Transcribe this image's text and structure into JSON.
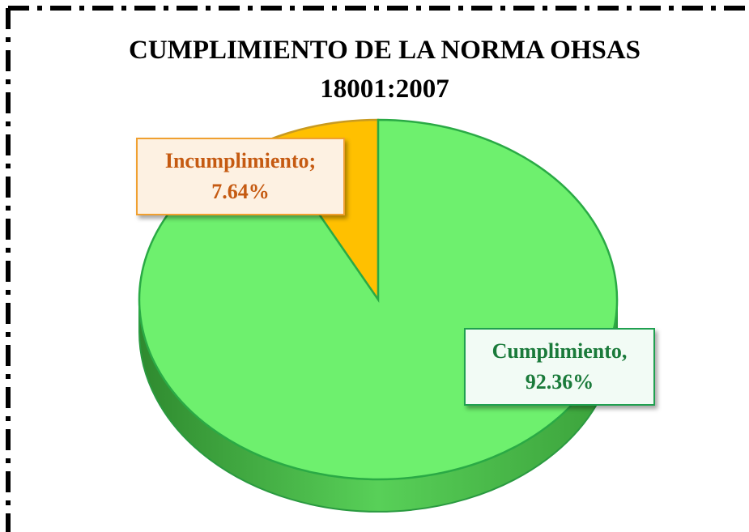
{
  "chart_data": {
    "type": "pie",
    "title": "CUMPLIMIENTO DE LA NORMA OHSAS 18001:2007",
    "values": [
      7.64,
      92.36
    ],
    "value_labels": [
      "Incumplimiento; 7.64%",
      "Cumplimiento, 92.36%"
    ],
    "colors": [
      "#ffc000",
      "#6ef06e"
    ]
  }
}
